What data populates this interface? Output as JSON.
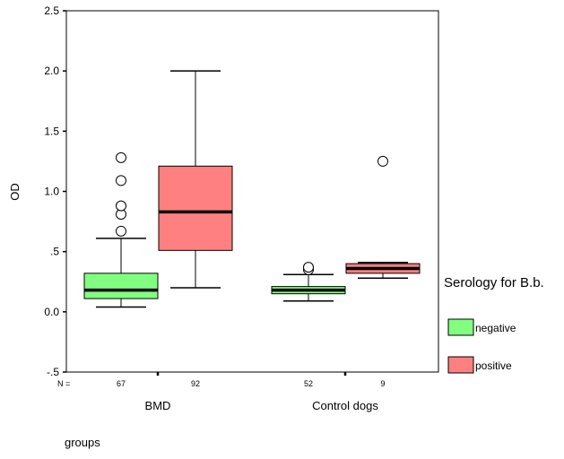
{
  "chart_data": {
    "type": "boxplot",
    "ylabel": "OD",
    "xlabel": "groups",
    "ylim": [
      -0.5,
      2.5
    ],
    "yticks": [
      {
        "value": -0.5,
        "label": "-.5"
      },
      {
        "value": 0.0,
        "label": "0.0"
      },
      {
        "value": 0.5,
        "label": ".5"
      },
      {
        "value": 1.0,
        "label": "1.0"
      },
      {
        "value": 1.5,
        "label": "1.5"
      },
      {
        "value": 2.0,
        "label": "2.0"
      },
      {
        "value": 2.5,
        "label": "2.5"
      }
    ],
    "n_prefix": "N =",
    "categories": [
      "BMD",
      "Control dogs"
    ],
    "legend": {
      "title": "Serology for B.b.",
      "position": "right",
      "entries": [
        {
          "label": "negative",
          "color": "#80ff80"
        },
        {
          "label": "positive",
          "color": "#ff8080"
        }
      ]
    },
    "boxes": [
      {
        "group": "BMD",
        "serology": "negative",
        "color": "#80ff80",
        "n": "67",
        "whisker_low": 0.04,
        "q1": 0.11,
        "median": 0.18,
        "q3": 0.32,
        "whisker_high": 0.61,
        "outliers": [
          0.67,
          0.81,
          0.88,
          1.09,
          1.28
        ]
      },
      {
        "group": "BMD",
        "serology": "positive",
        "color": "#ff8080",
        "n": "92",
        "whisker_low": 0.2,
        "q1": 0.51,
        "median": 0.83,
        "q3": 1.21,
        "whisker_high": 2.0,
        "outliers": []
      },
      {
        "group": "Control dogs",
        "serology": "negative",
        "color": "#80ff80",
        "n": "52",
        "whisker_low": 0.09,
        "q1": 0.15,
        "median": 0.18,
        "q3": 0.21,
        "whisker_high": 0.31,
        "outliers": [
          0.35,
          0.37
        ]
      },
      {
        "group": "Control dogs",
        "serology": "positive",
        "color": "#ff8080",
        "n": "9",
        "whisker_low": 0.28,
        "q1": 0.32,
        "median": 0.36,
        "q3": 0.4,
        "whisker_high": 0.41,
        "outliers": [
          1.25
        ]
      }
    ]
  }
}
